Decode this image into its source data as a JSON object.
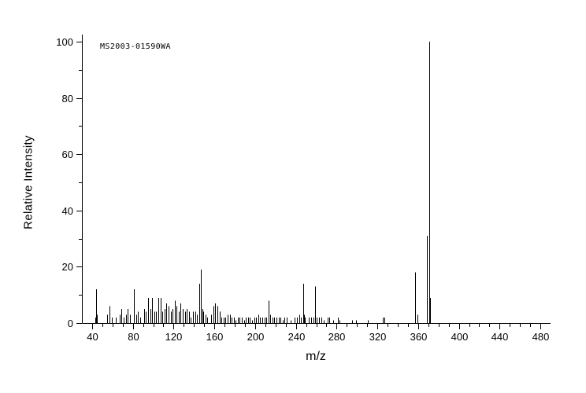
{
  "chart_data": {
    "type": "bar",
    "subtype": "mass-spectrum",
    "annotation": "MS2003-01590WA",
    "xlabel": "m/z",
    "ylabel": "Relative Intensity",
    "xlim": [
      30,
      490
    ],
    "ylim": [
      0,
      100
    ],
    "x_major_ticks": [
      40,
      80,
      120,
      160,
      200,
      240,
      280,
      320,
      360,
      400,
      440,
      480
    ],
    "x_minor_step": 10,
    "x_minor_range": [
      40,
      480
    ],
    "y_major_ticks": [
      0,
      20,
      40,
      60,
      80,
      100
    ],
    "y_minor_step": 10,
    "y_minor_range": [
      0,
      100
    ],
    "grid": false,
    "legend": false,
    "background_color": "#ffffff",
    "axis_color": "#000000",
    "line_color": "#000000",
    "peaks": [
      [
        43,
        2
      ],
      [
        44,
        12
      ],
      [
        45,
        3
      ],
      [
        55,
        3
      ],
      [
        57,
        6
      ],
      [
        59,
        2
      ],
      [
        63,
        2
      ],
      [
        67,
        3
      ],
      [
        69,
        5
      ],
      [
        71,
        2
      ],
      [
        73,
        3
      ],
      [
        75,
        5
      ],
      [
        77,
        3
      ],
      [
        81,
        12
      ],
      [
        83,
        3
      ],
      [
        85,
        4
      ],
      [
        87,
        2
      ],
      [
        91,
        5
      ],
      [
        93,
        4
      ],
      [
        95,
        9
      ],
      [
        97,
        5
      ],
      [
        99,
        9
      ],
      [
        101,
        4
      ],
      [
        103,
        4
      ],
      [
        105,
        9
      ],
      [
        107,
        9
      ],
      [
        109,
        4
      ],
      [
        111,
        5
      ],
      [
        113,
        7
      ],
      [
        115,
        6
      ],
      [
        117,
        4
      ],
      [
        119,
        5
      ],
      [
        121,
        8
      ],
      [
        123,
        6
      ],
      [
        125,
        4
      ],
      [
        127,
        7
      ],
      [
        129,
        5
      ],
      [
        131,
        4
      ],
      [
        133,
        5
      ],
      [
        135,
        4
      ],
      [
        137,
        2
      ],
      [
        139,
        4
      ],
      [
        141,
        4
      ],
      [
        143,
        3
      ],
      [
        145,
        14
      ],
      [
        147,
        19
      ],
      [
        148,
        5
      ],
      [
        149,
        4
      ],
      [
        151,
        3
      ],
      [
        153,
        2
      ],
      [
        157,
        3
      ],
      [
        159,
        6
      ],
      [
        161,
        7
      ],
      [
        163,
        6
      ],
      [
        165,
        4
      ],
      [
        167,
        2
      ],
      [
        169,
        2
      ],
      [
        171,
        2
      ],
      [
        173,
        3
      ],
      [
        175,
        3
      ],
      [
        177,
        2
      ],
      [
        179,
        2
      ],
      [
        181,
        1
      ],
      [
        183,
        2
      ],
      [
        185,
        2
      ],
      [
        187,
        2
      ],
      [
        189,
        1
      ],
      [
        191,
        2
      ],
      [
        193,
        2
      ],
      [
        195,
        2
      ],
      [
        197,
        1
      ],
      [
        199,
        2
      ],
      [
        201,
        2
      ],
      [
        203,
        3
      ],
      [
        205,
        2
      ],
      [
        207,
        2
      ],
      [
        209,
        2
      ],
      [
        211,
        2
      ],
      [
        213,
        8
      ],
      [
        215,
        3
      ],
      [
        217,
        2
      ],
      [
        219,
        2
      ],
      [
        221,
        2
      ],
      [
        223,
        2
      ],
      [
        225,
        2
      ],
      [
        227,
        1
      ],
      [
        229,
        2
      ],
      [
        231,
        2
      ],
      [
        235,
        1
      ],
      [
        239,
        2
      ],
      [
        241,
        2
      ],
      [
        243,
        3
      ],
      [
        245,
        2
      ],
      [
        247,
        14
      ],
      [
        248,
        3
      ],
      [
        249,
        2
      ],
      [
        253,
        2
      ],
      [
        255,
        2
      ],
      [
        257,
        2
      ],
      [
        259,
        13
      ],
      [
        260,
        2
      ],
      [
        263,
        2
      ],
      [
        265,
        2
      ],
      [
        267,
        1
      ],
      [
        271,
        2
      ],
      [
        273,
        2
      ],
      [
        277,
        1
      ],
      [
        281,
        2
      ],
      [
        283,
        1
      ],
      [
        295,
        1
      ],
      [
        299,
        1
      ],
      [
        311,
        1
      ],
      [
        325,
        2
      ],
      [
        327,
        2
      ],
      [
        357,
        18
      ],
      [
        359,
        3
      ],
      [
        369,
        31
      ],
      [
        371,
        100
      ],
      [
        372,
        9
      ]
    ]
  }
}
